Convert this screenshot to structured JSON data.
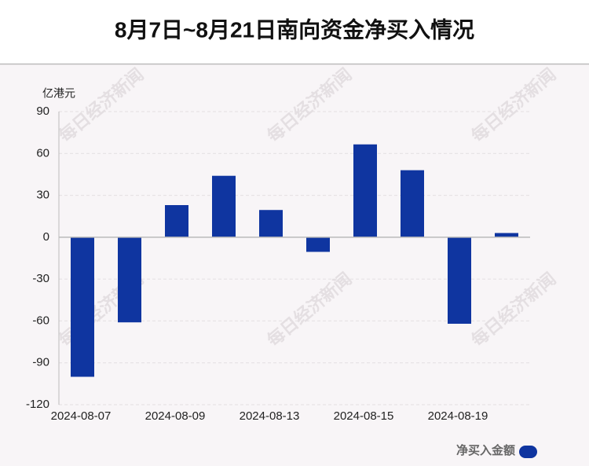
{
  "chart_data": {
    "type": "bar",
    "title": "8月7日~8月21日南向资金净买入情况",
    "y_axis_label": "亿港元",
    "categories": [
      "2024-08-07",
      null,
      "2024-08-09",
      null,
      "2024-08-13",
      null,
      "2024-08-15",
      null,
      "2024-08-19",
      null
    ],
    "series": [
      {
        "name": "净买入金额",
        "color": "#0f35a0",
        "values": [
          -100,
          -61,
          23,
          44,
          19.5,
          -10.5,
          66.5,
          48,
          -62,
          3
        ]
      }
    ],
    "ylim": [
      -120,
      90
    ],
    "yticks": [
      -120,
      -90,
      -60,
      -30,
      0,
      30,
      60,
      90
    ],
    "grid": true,
    "legend": "bottom-right",
    "watermark": "每日经济新闻"
  }
}
